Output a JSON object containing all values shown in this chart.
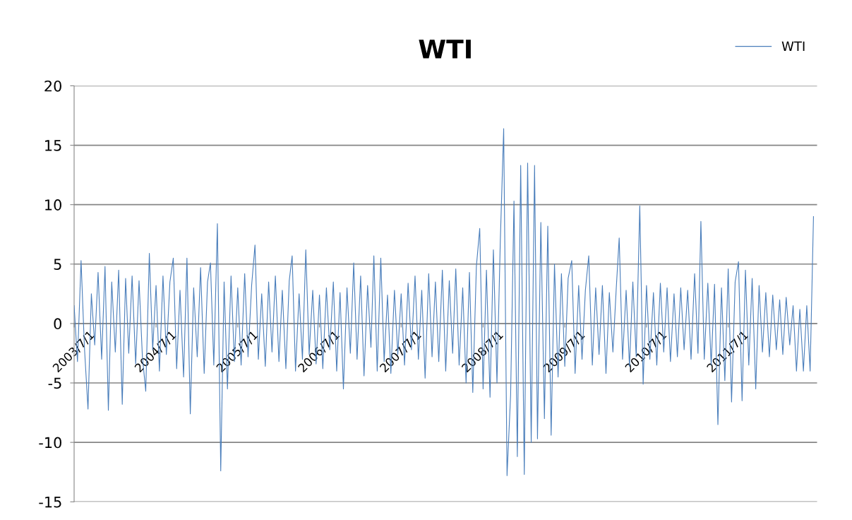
{
  "chart_data": {
    "type": "line",
    "title": "WTI",
    "legend": "top right",
    "grid": "y",
    "marker": "none",
    "line_style": "solid",
    "xlim": [
      "2003-07-01",
      "2012-08-01"
    ],
    "xticks": [
      {
        "value": "2003-07-01",
        "label": "2003/7/1"
      },
      {
        "value": "2004-07-01",
        "label": "2004/7/1"
      },
      {
        "value": "2005-07-01",
        "label": "2005/7/1"
      },
      {
        "value": "2006-07-01",
        "label": "2006/7/1"
      },
      {
        "value": "2007-07-01",
        "label": "2007/7/1"
      },
      {
        "value": "2008-07-01",
        "label": "2008/7/1"
      },
      {
        "value": "2009-07-01",
        "label": "2009/7/1"
      },
      {
        "value": "2010-07-01",
        "label": "2010/7/1"
      },
      {
        "value": "2011-07-01",
        "label": "2011/7/1"
      }
    ],
    "ylim": [
      -15,
      20
    ],
    "yticks": [
      -15,
      -10,
      -5,
      0,
      5,
      10,
      15,
      20
    ],
    "x": [
      "2003-07-01",
      "2003-07-16",
      "2003-08-01",
      "2003-08-16",
      "2003-09-01",
      "2003-09-16",
      "2003-10-01",
      "2003-10-16",
      "2003-11-01",
      "2003-11-16",
      "2003-12-01",
      "2003-12-16",
      "2004-01-01",
      "2004-01-16",
      "2004-02-01",
      "2004-02-16",
      "2004-03-01",
      "2004-03-16",
      "2004-04-01",
      "2004-04-16",
      "2004-05-01",
      "2004-05-16",
      "2004-06-01",
      "2004-06-16",
      "2004-07-01",
      "2004-07-16",
      "2004-08-01",
      "2004-08-16",
      "2004-09-01",
      "2004-09-16",
      "2004-10-01",
      "2004-10-16",
      "2004-11-01",
      "2004-11-16",
      "2004-12-01",
      "2004-12-16",
      "2005-01-01",
      "2005-01-16",
      "2005-02-01",
      "2005-02-16",
      "2005-03-01",
      "2005-03-16",
      "2005-04-01",
      "2005-04-16",
      "2005-05-01",
      "2005-05-16",
      "2005-06-01",
      "2005-06-16",
      "2005-07-01",
      "2005-07-16",
      "2005-08-01",
      "2005-08-16",
      "2005-09-01",
      "2005-09-16",
      "2005-10-01",
      "2005-10-16",
      "2005-11-01",
      "2005-11-16",
      "2005-12-01",
      "2005-12-16",
      "2006-01-01",
      "2006-01-16",
      "2006-02-01",
      "2006-02-16",
      "2006-03-01",
      "2006-03-16",
      "2006-04-01",
      "2006-04-16",
      "2006-05-01",
      "2006-05-16",
      "2006-06-01",
      "2006-06-16",
      "2006-07-01",
      "2006-07-16",
      "2006-08-01",
      "2006-08-16",
      "2006-09-01",
      "2006-09-16",
      "2006-10-01",
      "2006-10-16",
      "2006-11-01",
      "2006-11-16",
      "2006-12-01",
      "2006-12-16",
      "2007-01-01",
      "2007-01-16",
      "2007-02-01",
      "2007-02-16",
      "2007-03-01",
      "2007-03-16",
      "2007-04-01",
      "2007-04-16",
      "2007-05-01",
      "2007-05-16",
      "2007-06-01",
      "2007-06-16",
      "2007-07-01",
      "2007-07-16",
      "2007-08-01",
      "2007-08-16",
      "2007-09-01",
      "2007-09-16",
      "2007-10-01",
      "2007-10-16",
      "2007-11-01",
      "2007-11-16",
      "2007-12-01",
      "2007-12-16",
      "2008-01-01",
      "2008-01-16",
      "2008-02-01",
      "2008-02-16",
      "2008-03-01",
      "2008-03-16",
      "2008-04-01",
      "2008-04-16",
      "2008-05-01",
      "2008-05-16",
      "2008-06-01",
      "2008-06-16",
      "2008-07-01",
      "2008-07-16",
      "2008-08-01",
      "2008-08-16",
      "2008-09-01",
      "2008-09-16",
      "2008-10-01",
      "2008-10-16",
      "2008-11-01",
      "2008-11-16",
      "2008-12-01",
      "2008-12-16",
      "2009-01-01",
      "2009-01-16",
      "2009-02-01",
      "2009-02-16",
      "2009-03-01",
      "2009-03-16",
      "2009-04-01",
      "2009-04-16",
      "2009-05-01",
      "2009-05-16",
      "2009-06-01",
      "2009-06-16",
      "2009-07-01",
      "2009-07-16",
      "2009-08-01",
      "2009-08-16",
      "2009-09-01",
      "2009-09-16",
      "2009-10-01",
      "2009-10-16",
      "2009-11-01",
      "2009-11-16",
      "2009-12-01",
      "2009-12-16",
      "2010-01-01",
      "2010-01-16",
      "2010-02-01",
      "2010-02-16",
      "2010-03-01",
      "2010-03-16",
      "2010-04-01",
      "2010-04-16",
      "2010-05-01",
      "2010-05-16",
      "2010-06-01",
      "2010-06-16",
      "2010-07-01",
      "2010-07-16",
      "2010-08-01",
      "2010-08-16",
      "2010-09-01",
      "2010-09-16",
      "2010-10-01",
      "2010-10-16",
      "2010-11-01",
      "2010-11-16",
      "2010-12-01",
      "2010-12-16",
      "2011-01-01",
      "2011-01-16",
      "2011-02-01",
      "2011-02-16",
      "2011-03-01",
      "2011-03-16",
      "2011-04-01",
      "2011-04-16",
      "2011-05-01",
      "2011-05-16",
      "2011-06-01",
      "2011-06-16",
      "2011-07-01",
      "2011-07-16",
      "2011-08-01",
      "2011-08-16",
      "2011-09-01",
      "2011-09-16",
      "2011-10-01",
      "2011-10-16",
      "2011-11-01",
      "2011-11-16",
      "2011-12-01",
      "2011-12-16",
      "2012-01-01",
      "2012-01-16",
      "2012-02-01",
      "2012-02-16",
      "2012-03-01",
      "2012-03-16",
      "2012-04-01",
      "2012-04-16",
      "2012-05-01",
      "2012-05-16",
      "2012-06-01",
      "2012-06-16",
      "2012-07-01",
      "2012-07-16"
    ],
    "series": [
      {
        "name": "WTI",
        "color": "#4a7ebb",
        "values": [
          1.5,
          -3.2,
          5.3,
          -2.0,
          -7.2,
          2.5,
          -1.8,
          4.3,
          -3.0,
          4.8,
          -7.3,
          3.5,
          -2.4,
          4.5,
          -6.8,
          3.8,
          -2.5,
          4.0,
          -3.4,
          3.6,
          -2.8,
          -5.7,
          5.9,
          -2.2,
          3.2,
          -4.0,
          4.0,
          -2.6,
          3.5,
          5.5,
          -3.8,
          2.8,
          -4.5,
          5.5,
          -7.6,
          3.0,
          -2.8,
          4.7,
          -4.2,
          3.5,
          5.1,
          -3.5,
          8.4,
          -12.4,
          3.5,
          -5.5,
          4.0,
          -3.2,
          3.0,
          -3.5,
          4.2,
          -2.8,
          3.2,
          6.6,
          -3.0,
          2.5,
          -3.6,
          3.5,
          -2.4,
          4.0,
          -3.2,
          2.8,
          -3.8,
          3.6,
          5.7,
          -4.0,
          2.5,
          -3.0,
          6.2,
          -2.6,
          2.8,
          -3.4,
          2.4,
          -3.8,
          3.0,
          -2.2,
          3.5,
          -4.0,
          2.6,
          -5.5,
          3.0,
          -2.5,
          5.1,
          -3.0,
          4.0,
          -4.4,
          3.2,
          -2.0,
          5.7,
          -4.0,
          5.5,
          -3.2,
          2.4,
          -4.2,
          2.8,
          -2.6,
          2.5,
          -3.5,
          3.4,
          -2.2,
          4.0,
          -3.0,
          2.8,
          -4.6,
          4.2,
          -2.8,
          3.5,
          -3.2,
          4.5,
          -4.0,
          3.6,
          -2.5,
          4.6,
          -3.5,
          3.0,
          -5.0,
          4.3,
          -5.8,
          4.8,
          8.0,
          -5.5,
          4.5,
          -6.2,
          6.2,
          -5.0,
          7.0,
          16.4,
          -12.8,
          -6.0,
          10.3,
          -11.2,
          13.3,
          -12.7,
          13.5,
          -10.0,
          13.3,
          -9.7,
          8.5,
          -8.0,
          8.2,
          -9.4,
          5.0,
          -4.5,
          4.2,
          -3.6,
          3.8,
          5.3,
          -4.2,
          3.2,
          -3.0,
          2.8,
          5.7,
          -3.5,
          3.0,
          -2.6,
          3.2,
          -4.2,
          2.6,
          -2.4,
          3.0,
          7.2,
          -3.0,
          2.8,
          -3.6,
          3.5,
          -2.8,
          9.9,
          -5.1,
          3.2,
          -3.0,
          2.6,
          -3.5,
          3.4,
          -2.4,
          3.0,
          -3.2,
          2.5,
          -2.8,
          3.0,
          -2.2,
          2.8,
          -3.0,
          4.2,
          -2.5,
          8.6,
          -3.0,
          3.4,
          -3.5,
          3.3,
          -8.5,
          3.0,
          -4.8,
          4.6,
          -6.6,
          3.5,
          5.2,
          -6.5,
          4.5,
          -3.5,
          3.8,
          -5.5,
          3.2,
          -2.4,
          2.6,
          -2.8,
          2.4,
          -2.2,
          2.0,
          -2.6,
          2.2,
          -1.8,
          1.5,
          -4.0,
          1.2,
          -4.0,
          1.5,
          -4.0,
          9.0
        ]
      }
    ]
  }
}
